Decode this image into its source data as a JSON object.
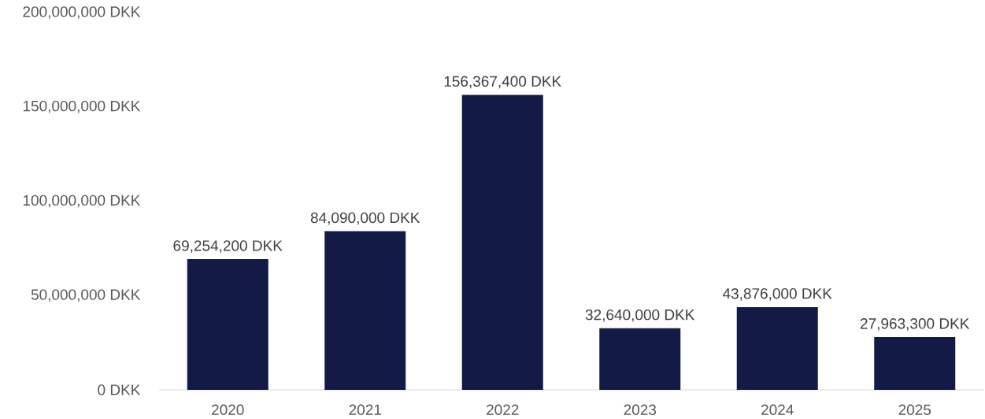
{
  "chart_data": {
    "type": "bar",
    "categories": [
      "2020",
      "2021",
      "2022",
      "2023",
      "2024",
      "2025"
    ],
    "values": [
      69254200,
      84090000,
      156367400,
      32640000,
      43876000,
      27963300
    ],
    "value_labels": [
      "69,254,200 DKK",
      "84,090,000 DKK",
      "156,367,400 DKK",
      "32,640,000 DKK",
      "43,876,000 DKK",
      "27,963,300 DKK"
    ],
    "color": "#121a45",
    "ylim": [
      0,
      200000000
    ],
    "yticks": [
      {
        "value": 0,
        "label": "0 DKK"
      },
      {
        "value": 50000000,
        "label": "50,000,000 DKK"
      },
      {
        "value": 100000000,
        "label": "100,000,000 DKK"
      },
      {
        "value": 150000000,
        "label": "150,000,000 DKK"
      },
      {
        "value": 200000000,
        "label": "200,000,000 DKK"
      }
    ]
  }
}
